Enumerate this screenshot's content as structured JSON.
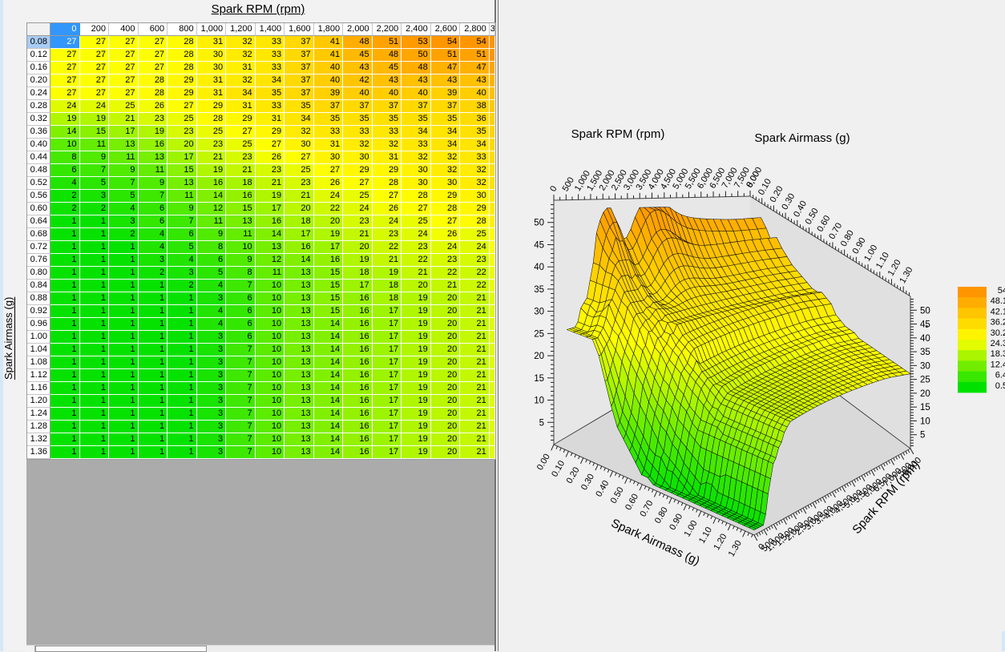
{
  "table": {
    "title": "Spark RPM (rpm)",
    "y_axis_label": "Spark Airmass (g)",
    "col_headers": [
      "0",
      "200",
      "400",
      "600",
      "800",
      "1,000",
      "1,200",
      "1,400",
      "1,600",
      "1,800",
      "2,000",
      "2,200",
      "2,400",
      "2,600",
      "2,800"
    ],
    "partial_col_header": "3",
    "row_headers": [
      "0.08",
      "0.12",
      "0.16",
      "0.20",
      "0.24",
      "0.28",
      "0.32",
      "0.36",
      "0.40",
      "0.44",
      "0.48",
      "0.52",
      "0.56",
      "0.60",
      "0.64",
      "0.68",
      "0.72",
      "0.76",
      "0.80",
      "0.84",
      "0.88",
      "0.92",
      "0.96",
      "1.00",
      "1.04",
      "1.08",
      "1.12",
      "1.16",
      "1.20",
      "1.24",
      "1.28",
      "1.32",
      "1.36"
    ],
    "values": [
      [
        27,
        27,
        27,
        27,
        28,
        31,
        32,
        33,
        37,
        41,
        48,
        51,
        53,
        54,
        54
      ],
      [
        27,
        27,
        27,
        27,
        28,
        30,
        32,
        33,
        37,
        41,
        45,
        48,
        50,
        51,
        51
      ],
      [
        27,
        27,
        27,
        27,
        28,
        30,
        31,
        33,
        37,
        40,
        43,
        45,
        48,
        47,
        47
      ],
      [
        27,
        27,
        27,
        28,
        29,
        31,
        32,
        34,
        37,
        40,
        42,
        43,
        43,
        43,
        43
      ],
      [
        27,
        27,
        27,
        28,
        29,
        31,
        34,
        35,
        37,
        39,
        40,
        40,
        40,
        39,
        40
      ],
      [
        24,
        24,
        25,
        26,
        27,
        29,
        31,
        33,
        35,
        37,
        37,
        37,
        37,
        37,
        38
      ],
      [
        19,
        19,
        21,
        23,
        25,
        28,
        29,
        31,
        34,
        35,
        35,
        35,
        35,
        35,
        36
      ],
      [
        14,
        15,
        17,
        19,
        23,
        25,
        27,
        29,
        32,
        33,
        33,
        33,
        34,
        34,
        35
      ],
      [
        10,
        11,
        13,
        16,
        20,
        23,
        25,
        27,
        30,
        31,
        32,
        32,
        33,
        34,
        34
      ],
      [
        8,
        9,
        11,
        13,
        17,
        21,
        23,
        26,
        27,
        30,
        30,
        31,
        32,
        32,
        33
      ],
      [
        6,
        7,
        9,
        11,
        15,
        19,
        21,
        23,
        25,
        27,
        29,
        29,
        30,
        32,
        32
      ],
      [
        4,
        5,
        7,
        9,
        13,
        16,
        18,
        21,
        23,
        26,
        27,
        28,
        30,
        30,
        32
      ],
      [
        2,
        3,
        5,
        7,
        11,
        14,
        16,
        19,
        21,
        24,
        25,
        27,
        28,
        29,
        30
      ],
      [
        2,
        2,
        4,
        6,
        9,
        12,
        15,
        17,
        20,
        22,
        24,
        26,
        27,
        28,
        29
      ],
      [
        1,
        1,
        3,
        6,
        7,
        11,
        13,
        16,
        18,
        20,
        23,
        24,
        25,
        27,
        28
      ],
      [
        1,
        1,
        2,
        4,
        6,
        9,
        11,
        14,
        17,
        19,
        21,
        23,
        24,
        26,
        25
      ],
      [
        1,
        1,
        1,
        4,
        5,
        8,
        10,
        13,
        16,
        17,
        20,
        22,
        23,
        24,
        24
      ],
      [
        1,
        1,
        1,
        3,
        4,
        6,
        9,
        12,
        14,
        16,
        19,
        21,
        22,
        23,
        23
      ],
      [
        1,
        1,
        1,
        2,
        3,
        5,
        8,
        11,
        13,
        15,
        18,
        19,
        21,
        22,
        22
      ],
      [
        1,
        1,
        1,
        1,
        2,
        4,
        7,
        10,
        13,
        15,
        17,
        18,
        20,
        21,
        22
      ],
      [
        1,
        1,
        1,
        1,
        1,
        3,
        6,
        10,
        13,
        15,
        16,
        18,
        19,
        20,
        21
      ],
      [
        1,
        1,
        1,
        1,
        1,
        4,
        6,
        10,
        13,
        15,
        16,
        17,
        19,
        20,
        21
      ],
      [
        1,
        1,
        1,
        1,
        1,
        4,
        6,
        10,
        13,
        14,
        16,
        17,
        19,
        20,
        21
      ],
      [
        1,
        1,
        1,
        1,
        1,
        3,
        6,
        10,
        13,
        14,
        16,
        17,
        19,
        20,
        21
      ],
      [
        1,
        1,
        1,
        1,
        1,
        3,
        7,
        10,
        13,
        14,
        16,
        17,
        19,
        20,
        21
      ],
      [
        1,
        1,
        1,
        1,
        1,
        3,
        7,
        10,
        13,
        14,
        16,
        17,
        19,
        20,
        21
      ],
      [
        1,
        1,
        1,
        1,
        1,
        3,
        7,
        10,
        13,
        14,
        16,
        17,
        19,
        20,
        21
      ],
      [
        1,
        1,
        1,
        1,
        1,
        3,
        7,
        10,
        13,
        14,
        16,
        17,
        19,
        20,
        21
      ],
      [
        1,
        1,
        1,
        1,
        1,
        3,
        7,
        10,
        13,
        14,
        16,
        17,
        19,
        20,
        21
      ],
      [
        1,
        1,
        1,
        1,
        1,
        3,
        7,
        10,
        13,
        14,
        16,
        17,
        19,
        20,
        21
      ],
      [
        1,
        1,
        1,
        1,
        1,
        3,
        7,
        10,
        13,
        14,
        16,
        17,
        19,
        20,
        21
      ],
      [
        1,
        1,
        1,
        1,
        1,
        3,
        7,
        10,
        13,
        14,
        16,
        17,
        19,
        20,
        21
      ],
      [
        1,
        1,
        1,
        1,
        1,
        3,
        7,
        10,
        13,
        14,
        16,
        17,
        19,
        20,
        21
      ]
    ],
    "selected": {
      "row": 0,
      "col": 0
    }
  },
  "chart_data": {
    "type": "surface",
    "title": "",
    "x_axis": {
      "label": "Spark RPM (rpm)",
      "tick_labels": [
        "0",
        "500",
        "1,000",
        "1,500",
        "2,000",
        "2,500",
        "3,000",
        "3,500",
        "4,000",
        "4,500",
        "5,000",
        "5,500",
        "6,000",
        "6,500",
        "7,000",
        "7,500",
        "8,000"
      ],
      "range": [
        0,
        8000
      ]
    },
    "y_axis": {
      "label": "Spark Airmass (g)",
      "tick_labels": [
        "0.00",
        "0.10",
        "0.20",
        "0.30",
        "0.40",
        "0.50",
        "0.60",
        "0.70",
        "0.80",
        "0.90",
        "1.00",
        "1.10",
        "1.20",
        "1.30"
      ],
      "range": [
        0,
        1.36
      ]
    },
    "z_axis": {
      "tick_labels": [
        "5",
        "10",
        "15",
        "20",
        "25",
        "30",
        "35",
        "40",
        "45",
        "50"
      ],
      "range": [
        0,
        55
      ],
      "unit": "°"
    },
    "legend": {
      "position": "right",
      "tick_labels": [
        "54",
        "48.1",
        "42.1",
        "36.2",
        "30.2",
        "24.3",
        "18.3",
        "12.4",
        "6.4",
        "0.5"
      ]
    },
    "values_ref": "table.values",
    "grid_on": true
  },
  "colors": {
    "selected_cell": "#3296FA",
    "selected_header": "#3296FA",
    "selected_row_header": "#A8CCF4",
    "value_low": "#00E100",
    "value_mid": "#FFFF00",
    "value_high": "#FF9600",
    "empty_area": "#ABABAB",
    "panel_bg": "#F0F0F0",
    "plot_floor": "#D9D9D9",
    "plot_wall_left": "#E7E7E7",
    "plot_wall_right": "#E0E0E0",
    "window_edge": "#D6E8F8"
  }
}
